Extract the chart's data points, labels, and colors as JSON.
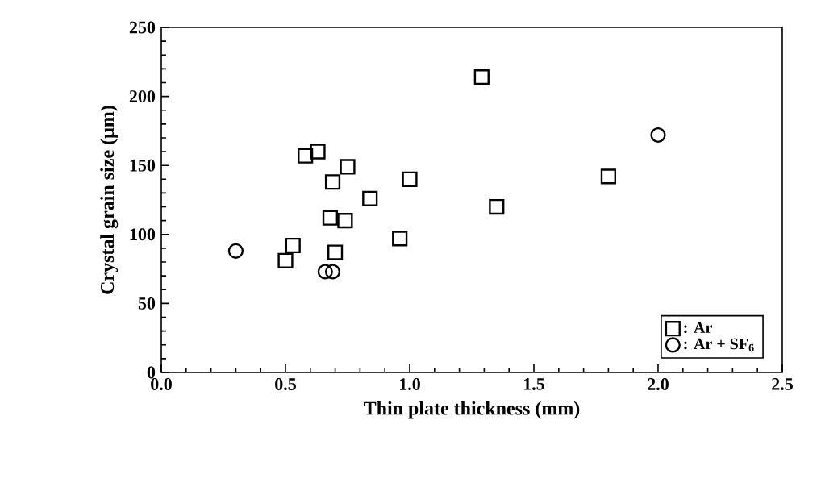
{
  "chart_data": {
    "type": "scatter",
    "xlabel": "Thin plate thickness (mm)",
    "ylabel": "Crystal grain size (µm)",
    "xlim": [
      0,
      2.5
    ],
    "ylim": [
      0,
      250
    ],
    "xticks": [
      {
        "value": 0,
        "label": "0.0"
      },
      0.5,
      {
        "value": 1,
        "label": "1.0"
      },
      1.5,
      {
        "value": 2,
        "label": "2.0"
      },
      2.5
    ],
    "yticks": [
      0,
      50,
      100,
      150,
      200,
      250
    ],
    "legend": "bottom right",
    "grid": false,
    "series": [
      {
        "name": ": Ar",
        "color": "#000000",
        "marker": "square",
        "x": [
          0.5,
          0.53,
          0.58,
          0.63,
          0.68,
          0.69,
          0.7,
          0.74,
          0.75,
          0.84,
          0.96,
          1.0,
          1.29,
          1.35,
          1.8
        ],
        "values": [
          81,
          92,
          157,
          160,
          112,
          138,
          87,
          110,
          149,
          126,
          97,
          140,
          214,
          120,
          142
        ]
      },
      {
        "name": ": Ar + SF$_{6}$",
        "color": "#000000",
        "marker": "circle",
        "x": [
          0.3,
          0.66,
          0.69,
          2.0
        ],
        "values": [
          88,
          73,
          73,
          172
        ]
      }
    ]
  }
}
